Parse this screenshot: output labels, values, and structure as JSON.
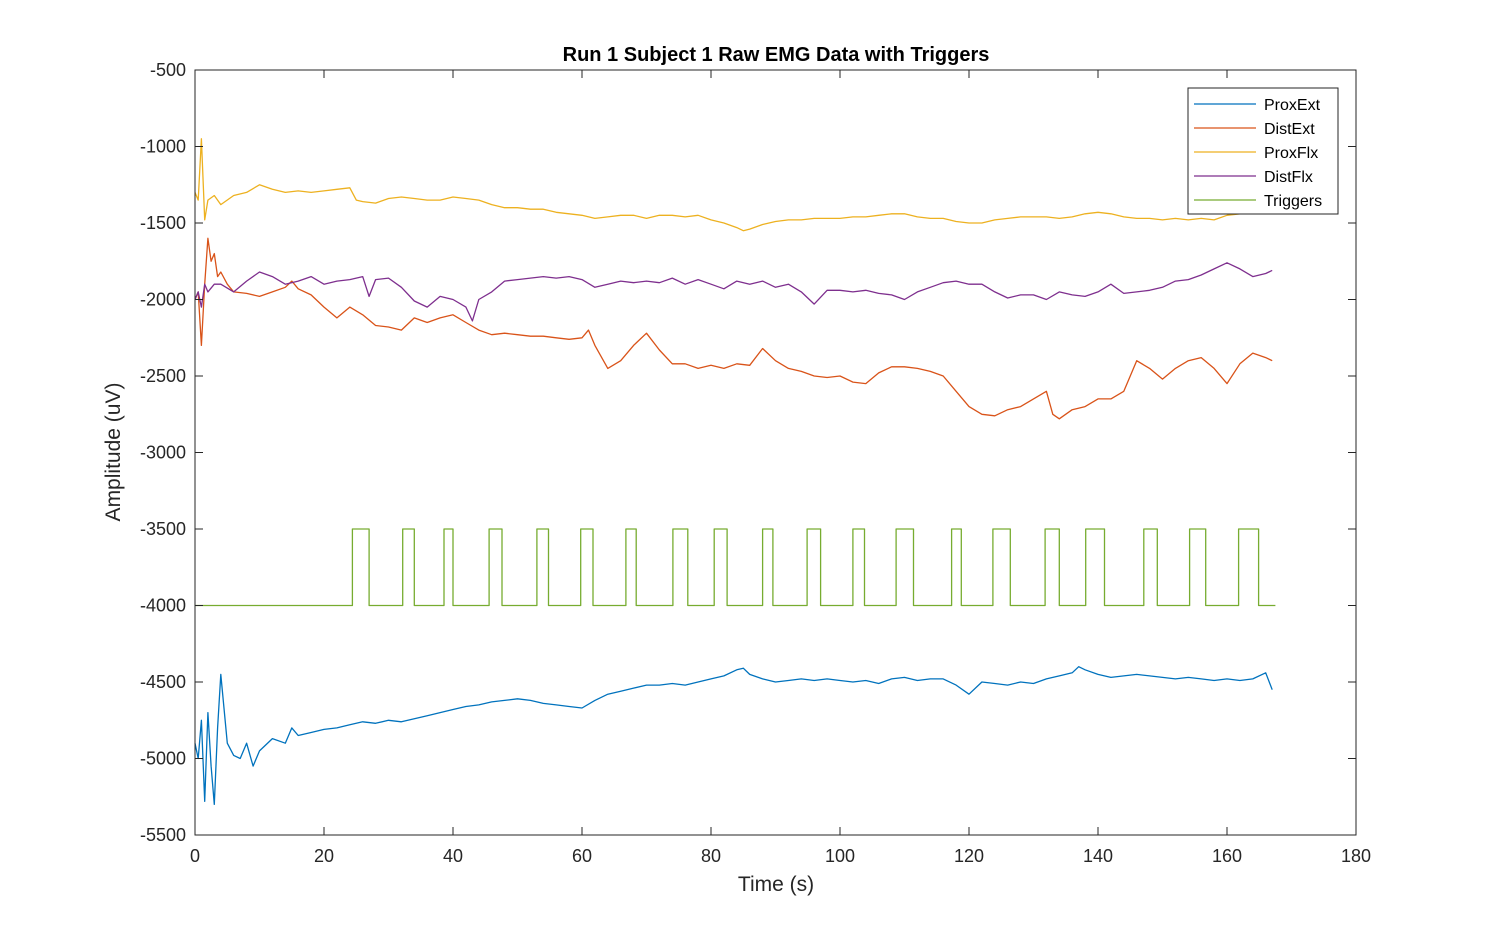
{
  "chart_data": {
    "type": "line",
    "title": "Run 1 Subject 1 Raw EMG Data with Triggers",
    "xlabel": "Time (s)",
    "ylabel": "Amplitude (uV)",
    "xlim": [
      0,
      180
    ],
    "ylim": [
      -5500,
      -500
    ],
    "xticks": [
      0,
      20,
      40,
      60,
      80,
      100,
      120,
      140,
      160,
      180
    ],
    "yticks": [
      -500,
      -1000,
      -1500,
      -2000,
      -2500,
      -3000,
      -3500,
      -4000,
      -4500,
      -5000,
      -5500
    ],
    "grid": false,
    "legend_position": "top-right",
    "series": [
      {
        "name": "ProxExt",
        "color": "#0072BD",
        "x": [
          0,
          0.5,
          1,
          1.5,
          2,
          2.5,
          3,
          3.5,
          4,
          5,
          6,
          7,
          8,
          9,
          10,
          12,
          14,
          15,
          16,
          18,
          20,
          22,
          24,
          26,
          28,
          30,
          32,
          34,
          36,
          38,
          40,
          42,
          44,
          46,
          48,
          50,
          52,
          54,
          56,
          58,
          60,
          62,
          64,
          66,
          68,
          70,
          72,
          74,
          76,
          78,
          80,
          82,
          84,
          85,
          86,
          88,
          90,
          92,
          94,
          96,
          98,
          100,
          102,
          104,
          106,
          108,
          110,
          112,
          114,
          116,
          118,
          120,
          122,
          124,
          126,
          128,
          130,
          132,
          134,
          136,
          137,
          138,
          140,
          142,
          144,
          146,
          148,
          150,
          152,
          154,
          156,
          158,
          160,
          162,
          164,
          166,
          167
        ],
        "y": [
          -4900,
          -5000,
          -4750,
          -5280,
          -4700,
          -5050,
          -5300,
          -4800,
          -4450,
          -4900,
          -4980,
          -5000,
          -4900,
          -5050,
          -4950,
          -4870,
          -4900,
          -4800,
          -4850,
          -4830,
          -4810,
          -4800,
          -4780,
          -4760,
          -4770,
          -4750,
          -4760,
          -4740,
          -4720,
          -4700,
          -4680,
          -4660,
          -4650,
          -4630,
          -4620,
          -4610,
          -4620,
          -4640,
          -4650,
          -4660,
          -4670,
          -4620,
          -4580,
          -4560,
          -4540,
          -4520,
          -4520,
          -4510,
          -4520,
          -4500,
          -4480,
          -4460,
          -4420,
          -4410,
          -4450,
          -4480,
          -4500,
          -4490,
          -4480,
          -4490,
          -4480,
          -4490,
          -4500,
          -4490,
          -4510,
          -4480,
          -4470,
          -4490,
          -4480,
          -4480,
          -4520,
          -4580,
          -4500,
          -4510,
          -4520,
          -4500,
          -4510,
          -4480,
          -4460,
          -4440,
          -4400,
          -4420,
          -4450,
          -4470,
          -4460,
          -4450,
          -4460,
          -4470,
          -4480,
          -4470,
          -4480,
          -4490,
          -4480,
          -4490,
          -4480,
          -4440,
          -4550
        ]
      },
      {
        "name": "DistExt",
        "color": "#D95319",
        "x": [
          0,
          0.5,
          1,
          1.5,
          2,
          2.5,
          3,
          3.5,
          4,
          5,
          6,
          8,
          10,
          12,
          14,
          15,
          16,
          18,
          20,
          22,
          24,
          26,
          28,
          30,
          32,
          34,
          36,
          38,
          40,
          42,
          44,
          46,
          48,
          50,
          52,
          54,
          56,
          58,
          60,
          61,
          62,
          64,
          66,
          68,
          70,
          72,
          74,
          76,
          78,
          80,
          82,
          84,
          86,
          88,
          90,
          92,
          94,
          96,
          98,
          100,
          102,
          104,
          106,
          108,
          110,
          112,
          114,
          116,
          118,
          120,
          122,
          124,
          126,
          128,
          130,
          132,
          133,
          134,
          136,
          138,
          140,
          142,
          144,
          146,
          148,
          150,
          152,
          154,
          156,
          158,
          160,
          162,
          164,
          166,
          167
        ],
        "y": [
          -2000,
          -1950,
          -2300,
          -1900,
          -1600,
          -1750,
          -1700,
          -1850,
          -1820,
          -1900,
          -1950,
          -1960,
          -1980,
          -1950,
          -1920,
          -1880,
          -1930,
          -1970,
          -2050,
          -2120,
          -2050,
          -2100,
          -2170,
          -2180,
          -2200,
          -2120,
          -2150,
          -2120,
          -2100,
          -2150,
          -2200,
          -2230,
          -2220,
          -2230,
          -2240,
          -2240,
          -2250,
          -2260,
          -2250,
          -2200,
          -2300,
          -2450,
          -2400,
          -2300,
          -2220,
          -2330,
          -2420,
          -2420,
          -2450,
          -2430,
          -2450,
          -2420,
          -2430,
          -2320,
          -2400,
          -2450,
          -2470,
          -2500,
          -2510,
          -2500,
          -2540,
          -2550,
          -2480,
          -2440,
          -2440,
          -2450,
          -2470,
          -2500,
          -2600,
          -2700,
          -2750,
          -2760,
          -2720,
          -2700,
          -2650,
          -2600,
          -2750,
          -2780,
          -2720,
          -2700,
          -2650,
          -2650,
          -2600,
          -2400,
          -2450,
          -2520,
          -2450,
          -2400,
          -2380,
          -2450,
          -2550,
          -2420,
          -2350,
          -2380,
          -2400
        ]
      },
      {
        "name": "ProxFlx",
        "color": "#EDB120",
        "x": [
          0,
          0.5,
          1,
          1.5,
          2,
          3,
          4,
          6,
          8,
          10,
          12,
          14,
          16,
          18,
          20,
          22,
          24,
          25,
          26,
          28,
          30,
          32,
          34,
          36,
          38,
          40,
          42,
          44,
          46,
          48,
          50,
          52,
          54,
          56,
          58,
          60,
          62,
          64,
          66,
          68,
          70,
          72,
          74,
          76,
          78,
          80,
          82,
          84,
          85,
          86,
          88,
          90,
          92,
          94,
          96,
          98,
          100,
          102,
          104,
          106,
          108,
          110,
          112,
          114,
          116,
          118,
          120,
          122,
          124,
          126,
          128,
          130,
          132,
          134,
          136,
          138,
          140,
          142,
          144,
          146,
          148,
          150,
          152,
          154,
          156,
          158,
          160,
          162,
          164,
          166,
          167
        ],
        "y": [
          -1300,
          -1350,
          -950,
          -1480,
          -1350,
          -1320,
          -1380,
          -1320,
          -1300,
          -1250,
          -1280,
          -1300,
          -1290,
          -1300,
          -1290,
          -1280,
          -1270,
          -1350,
          -1360,
          -1370,
          -1340,
          -1330,
          -1340,
          -1350,
          -1350,
          -1330,
          -1340,
          -1350,
          -1380,
          -1400,
          -1400,
          -1410,
          -1410,
          -1430,
          -1440,
          -1450,
          -1470,
          -1460,
          -1450,
          -1450,
          -1470,
          -1450,
          -1450,
          -1460,
          -1450,
          -1480,
          -1500,
          -1530,
          -1550,
          -1540,
          -1510,
          -1490,
          -1480,
          -1480,
          -1470,
          -1470,
          -1470,
          -1460,
          -1460,
          -1450,
          -1440,
          -1440,
          -1460,
          -1470,
          -1470,
          -1490,
          -1500,
          -1500,
          -1480,
          -1470,
          -1460,
          -1460,
          -1460,
          -1470,
          -1460,
          -1440,
          -1430,
          -1440,
          -1460,
          -1470,
          -1470,
          -1480,
          -1470,
          -1480,
          -1470,
          -1480,
          -1450,
          -1440,
          -1440,
          -1440,
          -1440
        ]
      },
      {
        "name": "DistFlx",
        "color": "#7E2F8E",
        "x": [
          0,
          0.5,
          1,
          1.5,
          2,
          3,
          4,
          6,
          8,
          10,
          12,
          14,
          16,
          18,
          20,
          22,
          24,
          26,
          27,
          28,
          30,
          32,
          34,
          36,
          38,
          40,
          42,
          43,
          44,
          46,
          48,
          50,
          52,
          54,
          56,
          58,
          60,
          62,
          64,
          66,
          68,
          70,
          72,
          74,
          76,
          78,
          80,
          82,
          84,
          86,
          88,
          90,
          92,
          94,
          96,
          98,
          100,
          102,
          104,
          106,
          108,
          110,
          112,
          114,
          116,
          118,
          120,
          122,
          124,
          126,
          128,
          130,
          132,
          134,
          136,
          138,
          140,
          142,
          144,
          146,
          148,
          150,
          152,
          154,
          156,
          158,
          160,
          162,
          164,
          166,
          167
        ],
        "y": [
          -2000,
          -1950,
          -2050,
          -1900,
          -1950,
          -1900,
          -1900,
          -1950,
          -1880,
          -1820,
          -1850,
          -1900,
          -1880,
          -1850,
          -1900,
          -1880,
          -1870,
          -1850,
          -1980,
          -1870,
          -1860,
          -1920,
          -2010,
          -2050,
          -1980,
          -2000,
          -2050,
          -2140,
          -2000,
          -1950,
          -1880,
          -1870,
          -1860,
          -1850,
          -1860,
          -1850,
          -1870,
          -1920,
          -1900,
          -1880,
          -1890,
          -1880,
          -1890,
          -1860,
          -1900,
          -1870,
          -1900,
          -1930,
          -1880,
          -1900,
          -1880,
          -1920,
          -1900,
          -1950,
          -2030,
          -1940,
          -1940,
          -1950,
          -1940,
          -1960,
          -1970,
          -2000,
          -1950,
          -1920,
          -1890,
          -1880,
          -1900,
          -1900,
          -1950,
          -1990,
          -1970,
          -1970,
          -2000,
          -1950,
          -1970,
          -1980,
          -1950,
          -1900,
          -1960,
          -1950,
          -1940,
          -1920,
          -1880,
          -1870,
          -1840,
          -1800,
          -1760,
          -1800,
          -1850,
          -1830,
          -1810
        ]
      },
      {
        "name": "Triggers",
        "color": "#77AC30",
        "x": [
          0,
          24.4,
          24.4,
          27.0,
          27.0,
          32.2,
          32.2,
          34.0,
          34.0,
          38.6,
          38.6,
          40.0,
          40.0,
          45.6,
          45.6,
          47.6,
          47.6,
          53.0,
          53.0,
          54.8,
          54.8,
          59.8,
          59.8,
          61.7,
          61.7,
          66.8,
          66.8,
          68.4,
          68.4,
          74.1,
          74.1,
          76.4,
          76.4,
          80.5,
          80.5,
          82.5,
          82.5,
          88.0,
          88.0,
          89.6,
          89.6,
          94.9,
          94.9,
          97.0,
          97.0,
          102.0,
          102.0,
          103.8,
          103.8,
          108.7,
          108.7,
          111.4,
          111.4,
          117.3,
          117.3,
          118.8,
          118.8,
          123.7,
          123.7,
          126.4,
          126.4,
          131.8,
          131.8,
          134.0,
          134.0,
          138.1,
          138.1,
          141.0,
          141.0,
          147.1,
          147.1,
          149.2,
          149.2,
          154.2,
          154.2,
          156.7,
          156.7,
          161.8,
          161.8,
          164.9,
          164.9,
          167.5
        ],
        "y": [
          -4000,
          -4000,
          -3500,
          -3500,
          -4000,
          -4000,
          -3500,
          -3500,
          -4000,
          -4000,
          -3500,
          -3500,
          -4000,
          -4000,
          -3500,
          -3500,
          -4000,
          -4000,
          -3500,
          -3500,
          -4000,
          -4000,
          -3500,
          -3500,
          -4000,
          -4000,
          -3500,
          -3500,
          -4000,
          -4000,
          -3500,
          -3500,
          -4000,
          -4000,
          -3500,
          -3500,
          -4000,
          -4000,
          -3500,
          -3500,
          -4000,
          -4000,
          -3500,
          -3500,
          -4000,
          -4000,
          -3500,
          -3500,
          -4000,
          -4000,
          -3500,
          -3500,
          -4000,
          -4000,
          -3500,
          -3500,
          -4000,
          -4000,
          -3500,
          -3500,
          -4000,
          -4000,
          -3500,
          -3500,
          -4000,
          -4000,
          -3500,
          -3500,
          -4000,
          -4000,
          -3500,
          -3500,
          -4000,
          -4000,
          -3500,
          -3500,
          -4000,
          -4000,
          -3500,
          -3500,
          -4000,
          -4000
        ]
      }
    ]
  }
}
